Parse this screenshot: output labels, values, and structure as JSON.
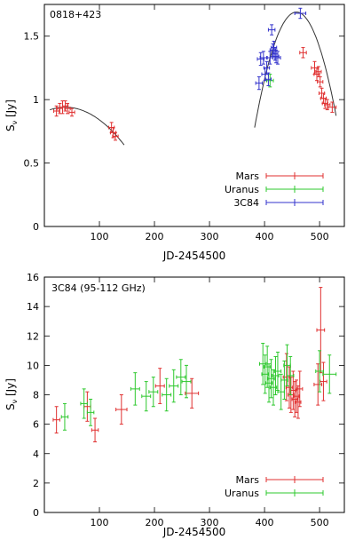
{
  "colors": {
    "mars": "#e03030",
    "uranus": "#2ec82e",
    "3c84": "#3333cc",
    "fit": "#333333"
  },
  "chart_data": [
    {
      "type": "scatter",
      "panel_label": "0818+423",
      "xlabel": "JD-2454500",
      "ylabel_main": "S",
      "ylabel_sub": "ν",
      "ylabel_unit": " [Jy]",
      "xlim": [
        0,
        545
      ],
      "ylim": [
        0,
        1.75
      ],
      "xticks": [
        100,
        200,
        300,
        400,
        500
      ],
      "yticks": [
        0,
        0.5,
        1,
        1.5
      ],
      "ytick_labels": [
        "0",
        "0.5",
        "1",
        "1.5"
      ],
      "legend_position": "bottom-right",
      "series": [
        {
          "name": "Mars",
          "color_key": "mars",
          "points": [
            {
              "x": 22,
              "y": 0.91,
              "ex": 5,
              "ey": 0.04
            },
            {
              "x": 28,
              "y": 0.93,
              "ex": 5,
              "ey": 0.04
            },
            {
              "x": 33,
              "y": 0.94,
              "ex": 5,
              "ey": 0.05
            },
            {
              "x": 38,
              "y": 0.95,
              "ex": 5,
              "ey": 0.04
            },
            {
              "x": 42,
              "y": 0.93,
              "ex": 5,
              "ey": 0.04
            },
            {
              "x": 50,
              "y": 0.9,
              "ex": 5,
              "ey": 0.03
            },
            {
              "x": 122,
              "y": 0.78,
              "ex": 5,
              "ey": 0.04
            },
            {
              "x": 125,
              "y": 0.74,
              "ex": 5,
              "ey": 0.04
            },
            {
              "x": 129,
              "y": 0.71,
              "ex": 5,
              "ey": 0.03
            },
            {
              "x": 470,
              "y": 1.37,
              "ex": 6,
              "ey": 0.04
            },
            {
              "x": 491,
              "y": 1.25,
              "ex": 6,
              "ey": 0.05
            },
            {
              "x": 495,
              "y": 1.2,
              "ex": 5,
              "ey": 0.05
            },
            {
              "x": 498,
              "y": 1.22,
              "ex": 5,
              "ey": 0.04
            },
            {
              "x": 501,
              "y": 1.14,
              "ex": 5,
              "ey": 0.04
            },
            {
              "x": 504,
              "y": 1.05,
              "ex": 5,
              "ey": 0.04
            },
            {
              "x": 507,
              "y": 1.01,
              "ex": 5,
              "ey": 0.04
            },
            {
              "x": 510,
              "y": 0.97,
              "ex": 5,
              "ey": 0.04
            },
            {
              "x": 514,
              "y": 0.96,
              "ex": 5,
              "ey": 0.04
            },
            {
              "x": 523,
              "y": 0.94,
              "ex": 7,
              "ey": 0.04
            }
          ]
        },
        {
          "name": "Uranus",
          "color_key": "uranus",
          "points": [
            {
              "x": 410,
              "y": 1.15,
              "ex": 6,
              "ey": 0.05
            }
          ]
        },
        {
          "name": "3C84",
          "color_key": "3c84",
          "points": [
            {
              "x": 390,
              "y": 1.13,
              "ex": 6,
              "ey": 0.05
            },
            {
              "x": 393,
              "y": 1.32,
              "ex": 6,
              "ey": 0.05
            },
            {
              "x": 398,
              "y": 1.33,
              "ex": 6,
              "ey": 0.05
            },
            {
              "x": 401,
              "y": 1.2,
              "ex": 6,
              "ey": 0.05
            },
            {
              "x": 404,
              "y": 1.25,
              "ex": 5,
              "ey": 0.05
            },
            {
              "x": 407,
              "y": 1.16,
              "ex": 5,
              "ey": 0.05
            },
            {
              "x": 410,
              "y": 1.33,
              "ex": 5,
              "ey": 0.05
            },
            {
              "x": 413,
              "y": 1.55,
              "ex": 6,
              "ey": 0.04
            },
            {
              "x": 415,
              "y": 1.39,
              "ex": 5,
              "ey": 0.05
            },
            {
              "x": 417,
              "y": 1.41,
              "ex": 5,
              "ey": 0.05
            },
            {
              "x": 419,
              "y": 1.36,
              "ex": 5,
              "ey": 0.05
            },
            {
              "x": 421,
              "y": 1.34,
              "ex": 5,
              "ey": 0.05
            },
            {
              "x": 424,
              "y": 1.33,
              "ex": 5,
              "ey": 0.05
            },
            {
              "x": 465,
              "y": 1.68,
              "ex": 10,
              "ey": 0.04
            }
          ]
        }
      ],
      "fits": [
        {
          "type": "parabola",
          "x_from": 10,
          "x_to": 145,
          "peak_x": 38,
          "peak_y": 0.94,
          "x_ref": 140,
          "y_ref": 0.67
        },
        {
          "type": "parabola",
          "x_from": 382,
          "x_to": 530,
          "peak_x": 458,
          "peak_y": 1.69,
          "x_ref": 385,
          "y_ref": 0.85
        }
      ]
    },
    {
      "type": "scatter",
      "panel_label": "3C84 (95-112 GHz)",
      "xlabel": "JD-2454500",
      "ylabel_main": "S",
      "ylabel_sub": "ν",
      "ylabel_unit": " [Jy]",
      "xlim": [
        0,
        545
      ],
      "ylim": [
        0,
        16
      ],
      "xticks": [
        100,
        200,
        300,
        400,
        500
      ],
      "yticks": [
        0,
        2,
        4,
        6,
        8,
        10,
        12,
        14,
        16
      ],
      "ytick_labels": [
        "0",
        "2",
        "4",
        "6",
        "8",
        "10",
        "12",
        "14",
        "16"
      ],
      "legend_position": "bottom-right",
      "series": [
        {
          "name": "Mars",
          "color_key": "mars",
          "points": [
            {
              "x": 22,
              "y": 6.3,
              "ex": 6,
              "ey": 0.9
            },
            {
              "x": 78,
              "y": 7.2,
              "ex": 6,
              "ey": 1.0
            },
            {
              "x": 92,
              "y": 5.6,
              "ex": 6,
              "ey": 0.8
            },
            {
              "x": 140,
              "y": 7.0,
              "ex": 10,
              "ey": 1.0
            },
            {
              "x": 210,
              "y": 8.6,
              "ex": 8,
              "ey": 1.2
            },
            {
              "x": 268,
              "y": 8.1,
              "ex": 12,
              "ey": 1.0
            },
            {
              "x": 440,
              "y": 9.2,
              "ex": 6,
              "ey": 1.6
            },
            {
              "x": 445,
              "y": 8.5,
              "ex": 6,
              "ey": 1.4
            },
            {
              "x": 448,
              "y": 8.0,
              "ex": 5,
              "ey": 1.2
            },
            {
              "x": 452,
              "y": 8.3,
              "ex": 5,
              "ey": 1.3
            },
            {
              "x": 455,
              "y": 7.7,
              "ex": 5,
              "ey": 1.2
            },
            {
              "x": 458,
              "y": 7.9,
              "ex": 5,
              "ey": 1.1
            },
            {
              "x": 461,
              "y": 7.5,
              "ex": 5,
              "ey": 1.1
            },
            {
              "x": 464,
              "y": 8.4,
              "ex": 5,
              "ey": 1.2
            },
            {
              "x": 497,
              "y": 8.7,
              "ex": 7,
              "ey": 1.4
            },
            {
              "x": 502,
              "y": 12.4,
              "ex": 7,
              "ey": 2.9
            },
            {
              "x": 507,
              "y": 8.9,
              "ex": 6,
              "ey": 1.3
            }
          ]
        },
        {
          "name": "Uranus",
          "color_key": "uranus",
          "points": [
            {
              "x": 37,
              "y": 6.5,
              "ex": 6,
              "ey": 0.9
            },
            {
              "x": 72,
              "y": 7.4,
              "ex": 6,
              "ey": 1.0
            },
            {
              "x": 84,
              "y": 6.8,
              "ex": 6,
              "ey": 0.9
            },
            {
              "x": 165,
              "y": 8.4,
              "ex": 8,
              "ey": 1.1
            },
            {
              "x": 185,
              "y": 7.9,
              "ex": 8,
              "ey": 1.0
            },
            {
              "x": 198,
              "y": 8.2,
              "ex": 8,
              "ey": 1.0
            },
            {
              "x": 222,
              "y": 8.0,
              "ex": 8,
              "ey": 1.1
            },
            {
              "x": 235,
              "y": 8.6,
              "ex": 8,
              "ey": 1.1
            },
            {
              "x": 248,
              "y": 9.2,
              "ex": 8,
              "ey": 1.2
            },
            {
              "x": 258,
              "y": 8.9,
              "ex": 8,
              "ey": 1.1
            },
            {
              "x": 397,
              "y": 10.1,
              "ex": 6,
              "ey": 1.4
            },
            {
              "x": 401,
              "y": 9.4,
              "ex": 6,
              "ey": 1.3
            },
            {
              "x": 405,
              "y": 9.9,
              "ex": 6,
              "ey": 1.4
            },
            {
              "x": 408,
              "y": 8.8,
              "ex": 6,
              "ey": 1.3
            },
            {
              "x": 412,
              "y": 9.1,
              "ex": 6,
              "ey": 1.3
            },
            {
              "x": 416,
              "y": 8.5,
              "ex": 6,
              "ey": 1.2
            },
            {
              "x": 420,
              "y": 9.3,
              "ex": 6,
              "ey": 1.3
            },
            {
              "x": 424,
              "y": 9.6,
              "ex": 6,
              "ey": 1.3
            },
            {
              "x": 430,
              "y": 8.2,
              "ex": 6,
              "ey": 1.2
            },
            {
              "x": 436,
              "y": 9.0,
              "ex": 6,
              "ey": 1.3
            },
            {
              "x": 441,
              "y": 10.0,
              "ex": 6,
              "ey": 1.4
            },
            {
              "x": 447,
              "y": 9.3,
              "ex": 6,
              "ey": 1.3
            },
            {
              "x": 500,
              "y": 9.6,
              "ex": 7,
              "ey": 1.4
            },
            {
              "x": 518,
              "y": 9.4,
              "ex": 12,
              "ey": 1.3
            }
          ]
        }
      ],
      "fits": []
    }
  ]
}
